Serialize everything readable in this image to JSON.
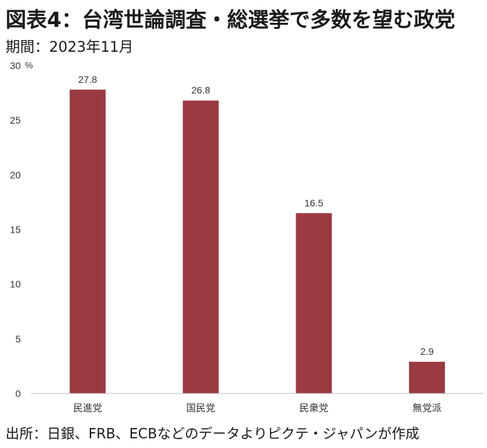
{
  "header": {
    "title": "図表4：台湾世論調査・総選挙で多数を望む政党",
    "period": "期間：2023年11月"
  },
  "footer": {
    "source": "出所：日銀、FRB、ECBなどのデータよりピクテ・ジャパンが作成"
  },
  "colors": {
    "bar": "#9b3a41",
    "axis": "#bfbfbf"
  },
  "chart_data": {
    "type": "bar",
    "title": "図表4：台湾世論調査・総選挙で多数を望む政党",
    "subtitle": "期間：2023年11月",
    "categories": [
      "民進党",
      "国民党",
      "民衆党",
      "無党派"
    ],
    "values": [
      27.8,
      26.8,
      16.5,
      2.9
    ],
    "data_labels": [
      "27.8",
      "26.8",
      "16.5",
      "2.9"
    ],
    "yunit": "%",
    "ylim": [
      0,
      30
    ],
    "yticks": [
      0,
      5,
      10,
      15,
      20,
      25,
      30
    ],
    "grid": false,
    "legend": "none"
  }
}
